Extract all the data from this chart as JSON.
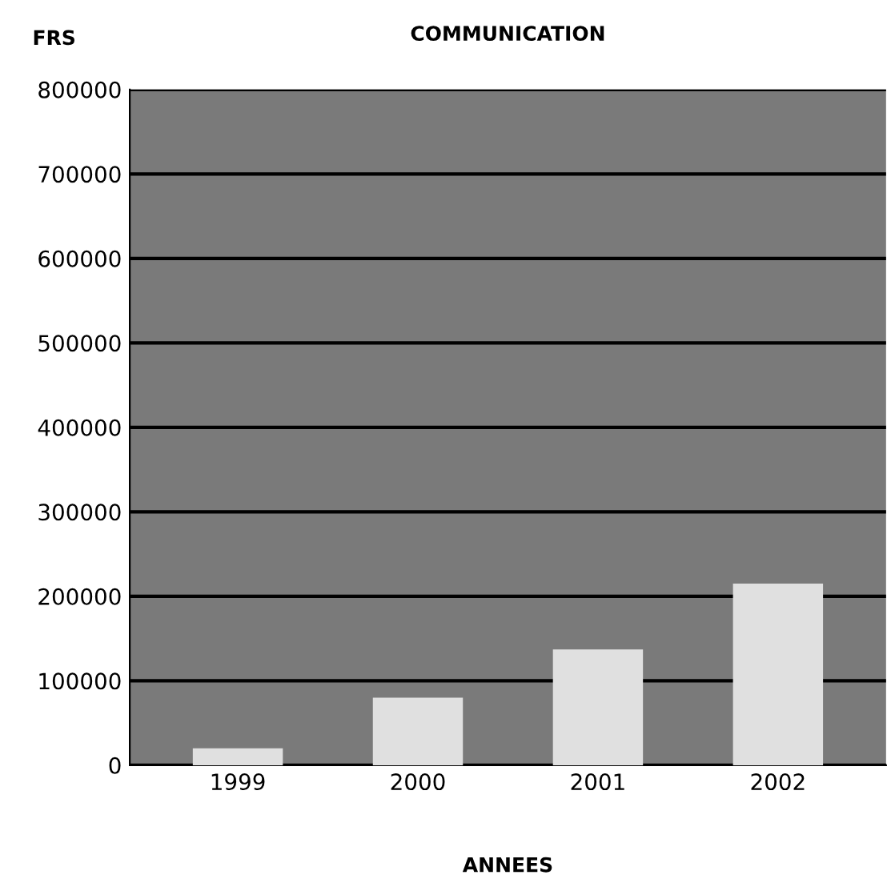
{
  "chart_data": {
    "type": "bar",
    "title": "COMMUNICATION",
    "xlabel": "ANNEES",
    "ylabel": "FRS",
    "categories": [
      "1999",
      "2000",
      "2001",
      "2002"
    ],
    "values": [
      20000,
      80000,
      137000,
      215000
    ],
    "color": "#e0e0e0",
    "ylim": [
      0,
      800000
    ],
    "yticks": [
      0,
      100000,
      200000,
      300000,
      400000,
      500000,
      600000,
      700000,
      800000
    ],
    "grid": "y"
  }
}
